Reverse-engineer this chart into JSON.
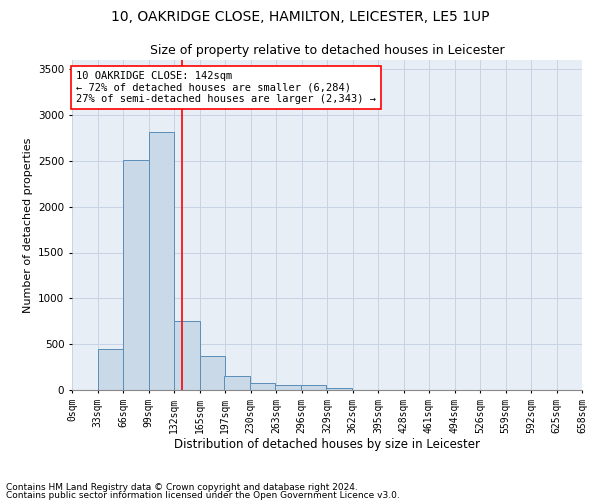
{
  "title1": "10, OAKRIDGE CLOSE, HAMILTON, LEICESTER, LE5 1UP",
  "title2": "Size of property relative to detached houses in Leicester",
  "xlabel": "Distribution of detached houses by size in Leicester",
  "ylabel": "Number of detached properties",
  "footnote1": "Contains HM Land Registry data © Crown copyright and database right 2024.",
  "footnote2": "Contains public sector information licensed under the Open Government Licence v3.0.",
  "annotation_line1": "10 OAKRIDGE CLOSE: 142sqm",
  "annotation_line2": "← 72% of detached houses are smaller (6,284)",
  "annotation_line3": "27% of semi-detached houses are larger (2,343) →",
  "bar_left_edges": [
    0,
    33,
    66,
    99,
    132,
    165,
    197,
    230,
    263,
    296,
    329,
    362,
    395,
    428,
    461,
    494,
    526,
    559,
    592,
    625
  ],
  "bar_heights": [
    0,
    450,
    2510,
    2820,
    750,
    375,
    155,
    80,
    60,
    60,
    20,
    5,
    0,
    0,
    0,
    0,
    0,
    0,
    0,
    0
  ],
  "bin_width": 33,
  "bar_color": "#c9d9e8",
  "bar_edge_color": "#5b8db8",
  "red_line_x": 142,
  "ylim": [
    0,
    3600
  ],
  "yticks": [
    0,
    500,
    1000,
    1500,
    2000,
    2500,
    3000,
    3500
  ],
  "xtick_labels": [
    "0sqm",
    "33sqm",
    "66sqm",
    "99sqm",
    "132sqm",
    "165sqm",
    "197sqm",
    "230sqm",
    "263sqm",
    "296sqm",
    "329sqm",
    "362sqm",
    "395sqm",
    "428sqm",
    "461sqm",
    "494sqm",
    "526sqm",
    "559sqm",
    "592sqm",
    "625sqm",
    "658sqm"
  ],
  "grid_color": "#c8d4e4",
  "bg_color": "#e8eef6",
  "title1_fontsize": 10,
  "title2_fontsize": 9,
  "annotation_fontsize": 7.5,
  "xlabel_fontsize": 8.5,
  "ylabel_fontsize": 8,
  "tick_fontsize": 7,
  "ytick_fontsize": 7.5,
  "footnote_fontsize": 6.5
}
